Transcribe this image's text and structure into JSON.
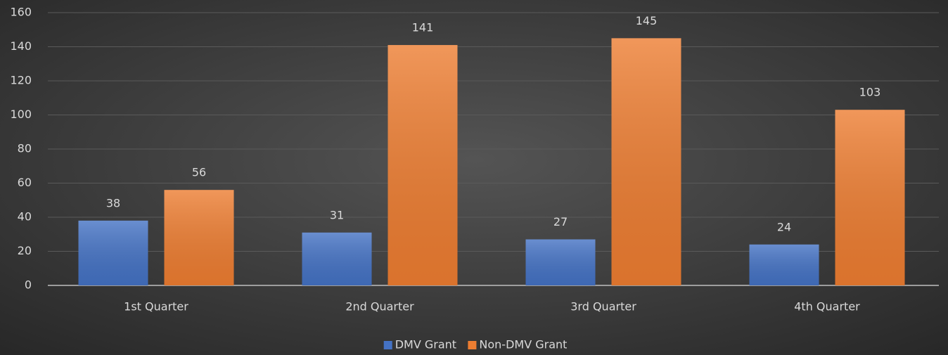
{
  "chart_data": {
    "type": "bar",
    "categories": [
      "1st Quarter",
      "2nd Quarter",
      "3rd Quarter",
      "4th Quarter"
    ],
    "series": [
      {
        "name": "DMV Grant",
        "color": "#4472c4",
        "values": [
          38,
          31,
          27,
          24
        ]
      },
      {
        "name": "Non-DMV Grant",
        "color": "#ed7d31",
        "values": [
          56,
          141,
          145,
          103
        ]
      }
    ],
    "ylim": [
      0,
      160
    ],
    "yticks": [
      0,
      20,
      40,
      60,
      80,
      100,
      120,
      140,
      160
    ],
    "grid": true,
    "legend": "bottom"
  }
}
